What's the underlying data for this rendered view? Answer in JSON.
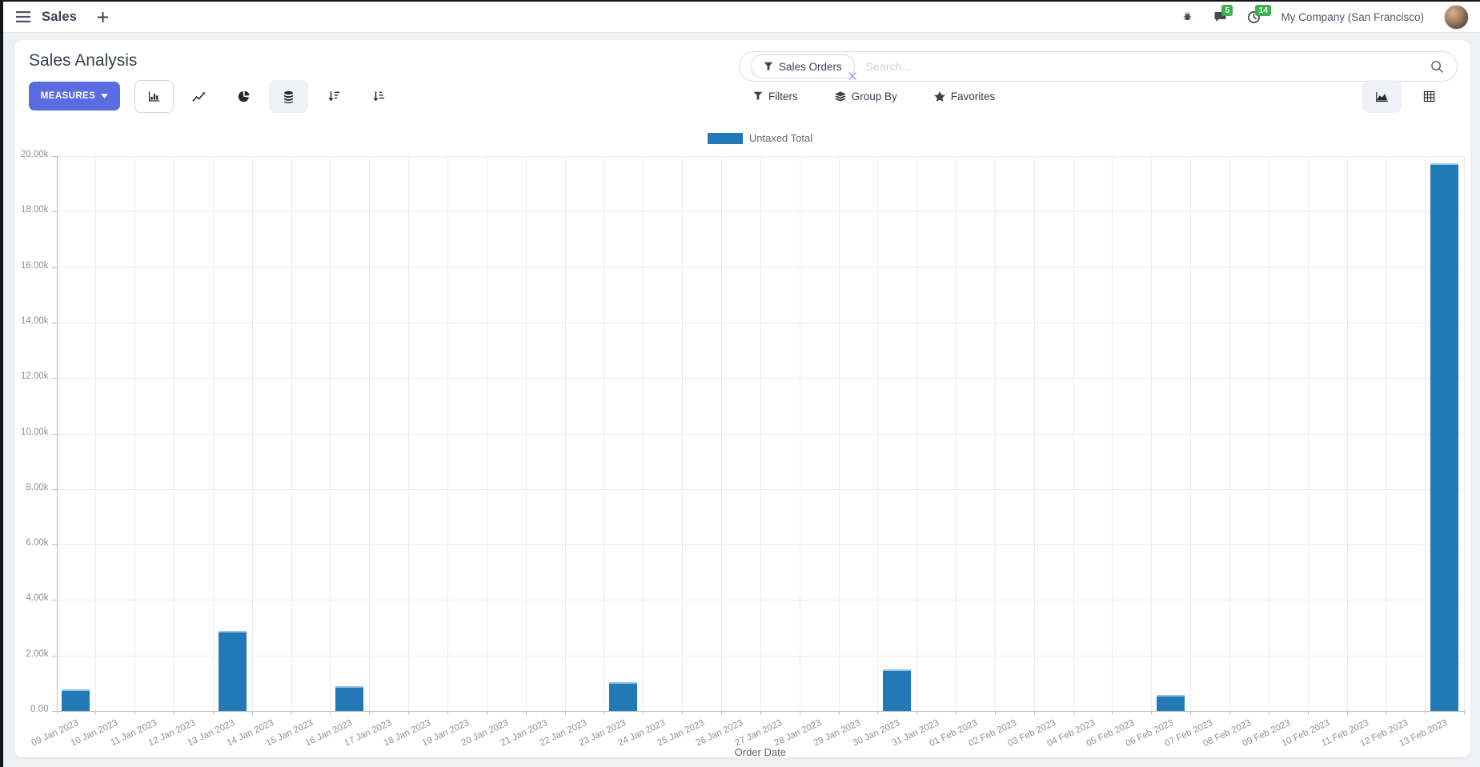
{
  "navbar": {
    "app_name": "Sales",
    "messages_badge": "5",
    "activities_badge": "14",
    "company": "My Company (San Francisco)"
  },
  "control_panel": {
    "title": "Sales Analysis",
    "measures_label": "MEASURES",
    "filters_label": "Filters",
    "group_by_label": "Group By",
    "favorites_label": "Favorites",
    "search": {
      "facet_label": "Sales Orders",
      "placeholder": "Search..."
    }
  },
  "legend": {
    "label": "Untaxed Total"
  },
  "chart_data": {
    "type": "bar",
    "title": "",
    "xlabel": "Order Date",
    "ylabel": "",
    "ylim": [
      0,
      20000
    ],
    "grid": true,
    "legend_position": "top",
    "y_ticks": [
      "20.00k",
      "18.00k",
      "16.00k",
      "14.00k",
      "12.00k",
      "10.00k",
      "8.00k",
      "6.00k",
      "4.00k",
      "2.00k",
      "0.00"
    ],
    "categories": [
      "09 Jan 2023",
      "10 Jan 2023",
      "11 Jan 2023",
      "12 Jan 2023",
      "13 Jan 2023",
      "14 Jan 2023",
      "15 Jan 2023",
      "16 Jan 2023",
      "17 Jan 2023",
      "18 Jan 2023",
      "19 Jan 2023",
      "20 Jan 2023",
      "21 Jan 2023",
      "22 Jan 2023",
      "23 Jan 2023",
      "24 Jan 2023",
      "25 Jan 2023",
      "26 Jan 2023",
      "27 Jan 2023",
      "28 Jan 2023",
      "29 Jan 2023",
      "30 Jan 2023",
      "31 Jan 2023",
      "01 Feb 2023",
      "02 Feb 2023",
      "03 Feb 2023",
      "04 Feb 2023",
      "05 Feb 2023",
      "06 Feb 2023",
      "07 Feb 2023",
      "08 Feb 2023",
      "09 Feb 2023",
      "10 Feb 2023",
      "11 Feb 2023",
      "12 Feb 2023",
      "13 Feb 2023"
    ],
    "series": [
      {
        "name": "Untaxed Total",
        "color": "#2279b5",
        "values": [
          780,
          0,
          0,
          0,
          2900,
          0,
          0,
          890,
          0,
          0,
          0,
          0,
          0,
          0,
          1040,
          0,
          0,
          0,
          0,
          0,
          0,
          1500,
          0,
          0,
          0,
          0,
          0,
          0,
          580,
          0,
          0,
          0,
          0,
          0,
          0,
          19740
        ]
      }
    ]
  }
}
